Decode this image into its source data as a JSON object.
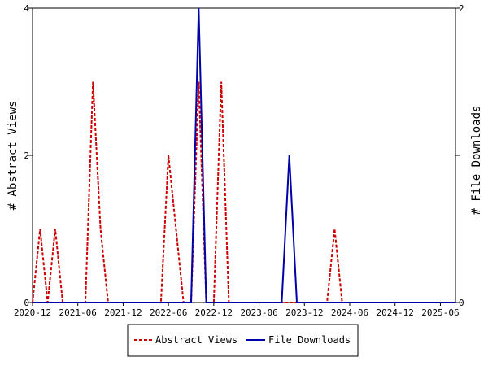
{
  "chart_data": {
    "type": "line",
    "x_tick_labels": [
      "2020-12",
      "2021-06",
      "2021-12",
      "2022-06",
      "2022-12",
      "2023-06",
      "2023-12",
      "2024-06",
      "2024-12",
      "2025-06"
    ],
    "x_dates": [
      "2020-12",
      "2021-01",
      "2021-02",
      "2021-03",
      "2021-04",
      "2021-05",
      "2021-06",
      "2021-07",
      "2021-08",
      "2021-09",
      "2021-10",
      "2021-11",
      "2021-12",
      "2022-01",
      "2022-02",
      "2022-03",
      "2022-04",
      "2022-05",
      "2022-06",
      "2022-07",
      "2022-08",
      "2022-09",
      "2022-10",
      "2022-11",
      "2022-12",
      "2023-01",
      "2023-02",
      "2023-03",
      "2023-04",
      "2023-05",
      "2023-06",
      "2023-07",
      "2023-08",
      "2023-09",
      "2023-10",
      "2023-11",
      "2023-12",
      "2024-01",
      "2024-02",
      "2024-03",
      "2024-04",
      "2024-05",
      "2024-06",
      "2024-07",
      "2024-08",
      "2024-09",
      "2024-10",
      "2024-11",
      "2024-12",
      "2025-01",
      "2025-02",
      "2025-03",
      "2025-04",
      "2025-05",
      "2025-06",
      "2025-07",
      "2025-08"
    ],
    "series": [
      {
        "name": "Abstract Views",
        "axis": "left",
        "color": "#cc0000",
        "style": "dashed",
        "values": [
          0,
          1,
          0,
          1,
          0,
          0,
          0,
          0,
          3,
          1,
          0,
          0,
          0,
          0,
          0,
          0,
          0,
          0,
          2,
          1,
          0,
          0,
          3,
          0,
          0,
          3,
          0,
          0,
          0,
          0,
          0,
          0,
          0,
          0,
          0,
          0,
          0,
          0,
          0,
          0,
          1,
          0,
          0,
          0,
          0,
          0,
          0,
          0,
          0,
          0,
          0,
          0,
          0,
          0,
          0,
          0,
          0
        ]
      },
      {
        "name": "File Downloads",
        "axis": "right",
        "color": "#0000aa",
        "style": "solid",
        "values": [
          0,
          0,
          0,
          0,
          0,
          0,
          0,
          0,
          0,
          0,
          0,
          0,
          0,
          0,
          0,
          0,
          0,
          0,
          0,
          0,
          0,
          0,
          2,
          0,
          0,
          0,
          0,
          0,
          0,
          0,
          0,
          0,
          0,
          0,
          1,
          0,
          0,
          0,
          0,
          0,
          0,
          0,
          0,
          0,
          0,
          0,
          0,
          0,
          0,
          0,
          0,
          0,
          0,
          0,
          0,
          0,
          0
        ]
      }
    ],
    "ylabel_left": "# Abstract Views",
    "ylabel_right": "# File Downloads",
    "ylim_left": [
      0,
      4
    ],
    "ylim_right": [
      0,
      2
    ],
    "yticks_left": [
      "0",
      "2",
      "4"
    ],
    "yticks_right": [
      "0",
      "1",
      "2"
    ],
    "legend_position": "bottom",
    "grid": false
  }
}
